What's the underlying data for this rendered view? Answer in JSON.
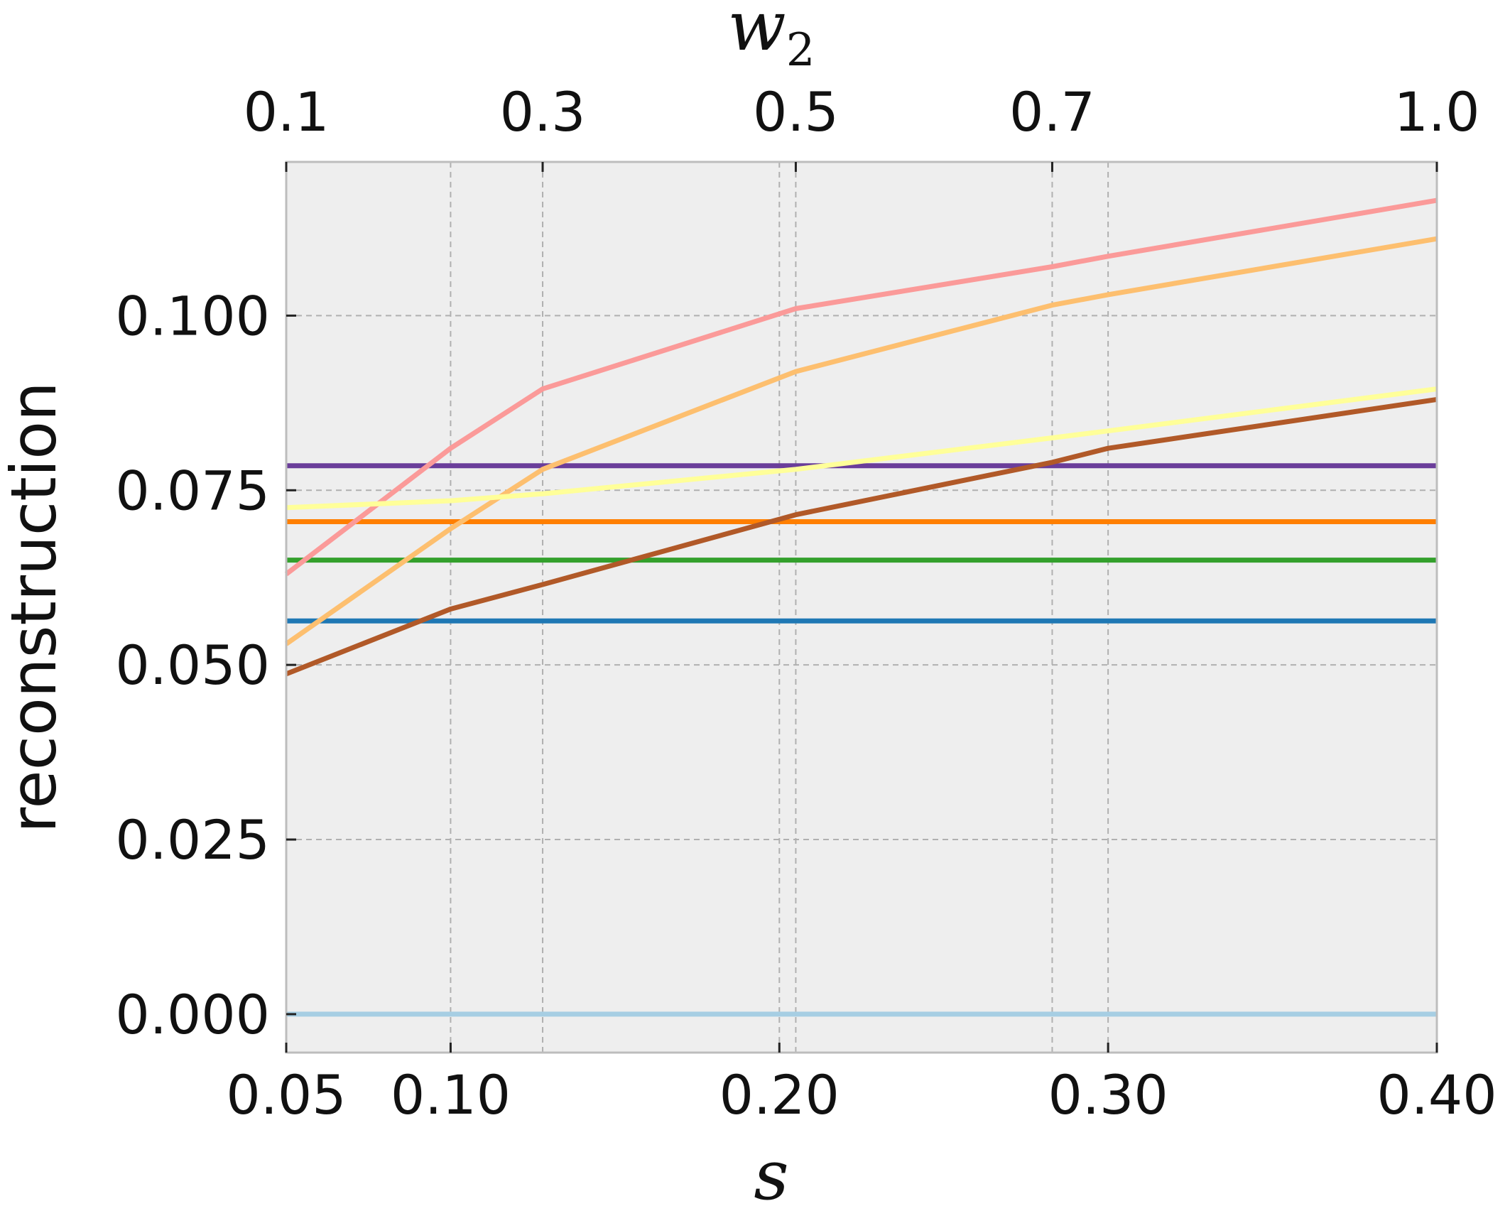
{
  "chart_data": {
    "type": "line",
    "title": "",
    "xlabel": "s",
    "x2label": "w",
    "x2label_subscript": "2",
    "ylabel": "reconstruction",
    "xlim": [
      0.05,
      0.4
    ],
    "ylim": [
      -0.0055,
      0.122
    ],
    "x_ticks": [
      0.05,
      0.1,
      0.2,
      0.3,
      0.4
    ],
    "x_tick_labels": [
      "0.05",
      "0.10",
      "0.20",
      "0.30",
      "0.40"
    ],
    "x2_ticks_at_s": [
      0.05,
      0.128,
      0.205,
      0.283,
      0.4
    ],
    "x2_tick_labels": [
      "0.1",
      "0.3",
      "0.5",
      "0.7",
      "1.0"
    ],
    "y_ticks": [
      0.0,
      0.025,
      0.05,
      0.075,
      0.1
    ],
    "y_tick_labels": [
      "0.000",
      "0.025",
      "0.050",
      "0.075",
      "0.100"
    ],
    "grid": true,
    "background": "#eeeeee",
    "series": [
      {
        "color": "#a6cee3",
        "x": [
          0.05,
          0.4
        ],
        "y": [
          0.0,
          0.0
        ]
      },
      {
        "color": "#1f78b4",
        "x": [
          0.05,
          0.4
        ],
        "y": [
          0.0563,
          0.0563
        ]
      },
      {
        "color": "#33a02c",
        "x": [
          0.05,
          0.4
        ],
        "y": [
          0.065,
          0.065
        ]
      },
      {
        "color": "#ff7f00",
        "x": [
          0.05,
          0.4
        ],
        "y": [
          0.0705,
          0.0705
        ]
      },
      {
        "color": "#6a3d9a",
        "x": [
          0.05,
          0.4
        ],
        "y": [
          0.0785,
          0.0785
        ]
      },
      {
        "color": "#fb9a99",
        "x": [
          0.05,
          0.1,
          0.128,
          0.205,
          0.283,
          0.3,
          0.4
        ],
        "y": [
          0.063,
          0.081,
          0.0895,
          0.101,
          0.107,
          0.1085,
          0.1165
        ]
      },
      {
        "color": "#fdbf6f",
        "x": [
          0.05,
          0.1,
          0.128,
          0.205,
          0.283,
          0.3,
          0.4
        ],
        "y": [
          0.053,
          0.0695,
          0.078,
          0.092,
          0.1015,
          0.103,
          0.111
        ]
      },
      {
        "color": "#ffff99",
        "x": [
          0.05,
          0.1,
          0.128,
          0.205,
          0.283,
          0.3,
          0.4
        ],
        "y": [
          0.0725,
          0.0735,
          0.0745,
          0.078,
          0.0825,
          0.0835,
          0.0895
        ]
      },
      {
        "color": "#b15928",
        "x": [
          0.05,
          0.1,
          0.128,
          0.205,
          0.283,
          0.3,
          0.4
        ],
        "y": [
          0.0487,
          0.058,
          0.0615,
          0.0715,
          0.079,
          0.081,
          0.088
        ]
      }
    ]
  }
}
